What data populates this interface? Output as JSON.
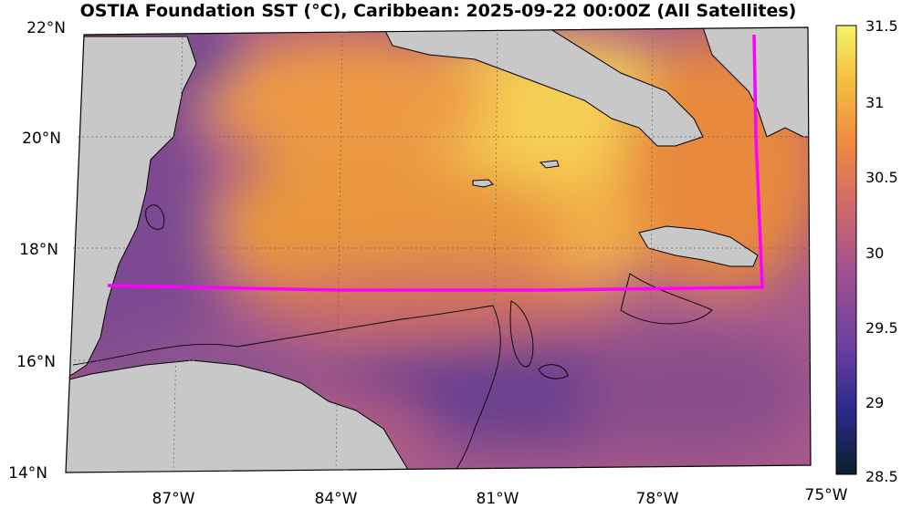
{
  "title": "OSTIA Foundation SST (°C), Caribbean: 2025-09-22 00:00Z (All Satellites)",
  "map": {
    "lat_labels": [
      "22°N",
      "20°N",
      "18°N",
      "16°N",
      "14°N"
    ],
    "lon_labels": [
      "87°W",
      "84°W",
      "81°W",
      "78°W",
      "75°W"
    ]
  },
  "colorbar": {
    "min": 28.5,
    "max": 31.5,
    "ticks": [
      "31.5",
      "31",
      "30.5",
      "30",
      "29.5",
      "29",
      "28.5"
    ],
    "colormap": [
      "#0b1f2e",
      "#2a2a8a",
      "#6a3ea0",
      "#a05090",
      "#d06a6a",
      "#f08a40",
      "#f5c040",
      "#f4f46a"
    ]
  },
  "colors": {
    "land": "#c8c8c8",
    "boundary_line": "#ff00ff",
    "coast_line": "#000000"
  }
}
